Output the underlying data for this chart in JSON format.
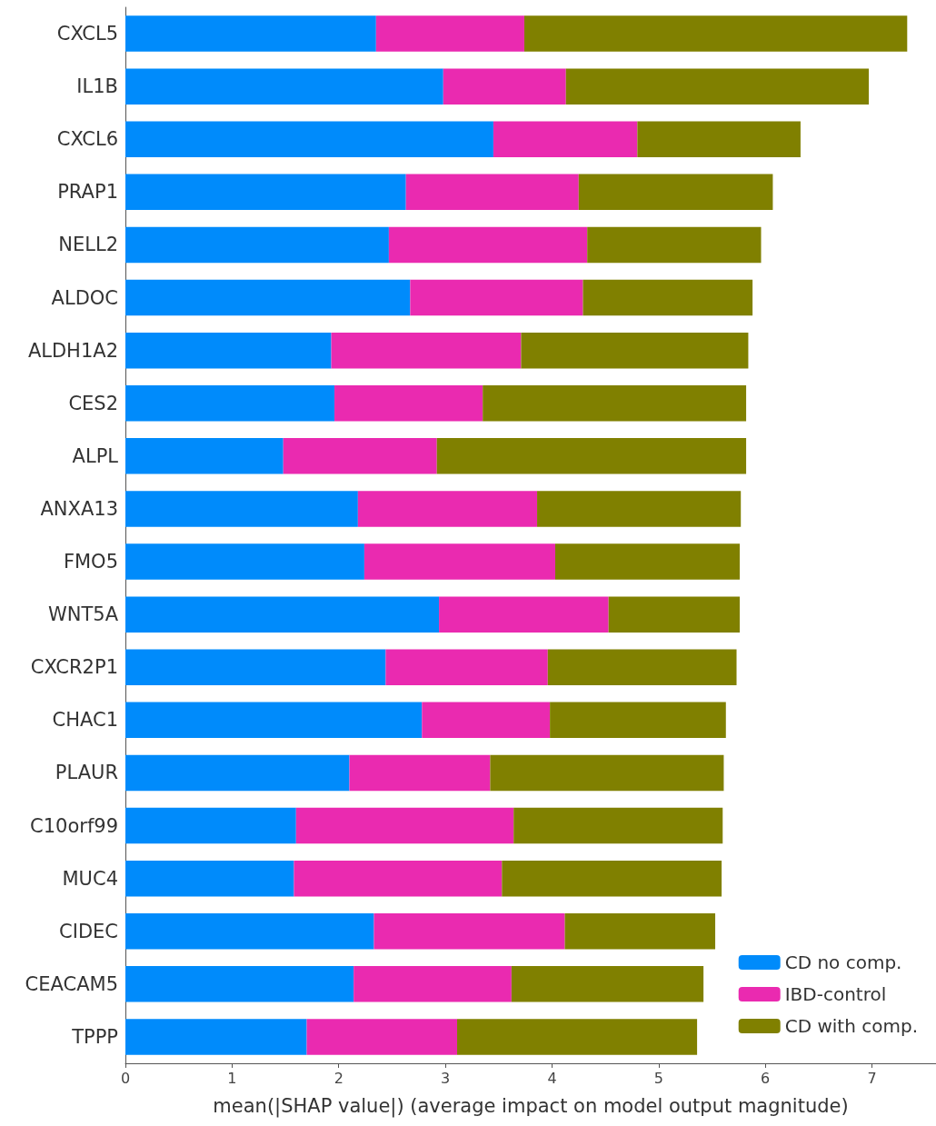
{
  "chart_data": {
    "type": "bar",
    "orientation": "horizontal",
    "stacked": true,
    "xlabel": "mean(|SHAP value|) (average impact on model output magnitude)",
    "categories": [
      "CXCL5",
      "IL1B",
      "CXCL6",
      "PRAP1",
      "NELL2",
      "ALDOC",
      "ALDH1A2",
      "CES2",
      "ALPL",
      "ANXA13",
      "FMO5",
      "WNT5A",
      "CXCR2P1",
      "CHAC1",
      "PLAUR",
      "C10orf99",
      "MUC4",
      "CIDEC",
      "CEACAM5",
      "TPPP"
    ],
    "series": [
      {
        "name": "CD no comp.",
        "color": "#008bfb",
        "values": [
          2.35,
          2.98,
          3.45,
          2.63,
          2.47,
          2.67,
          1.93,
          1.96,
          1.48,
          2.18,
          2.24,
          2.94,
          2.44,
          2.78,
          2.1,
          1.6,
          1.58,
          2.33,
          2.14,
          1.7
        ]
      },
      {
        "name": "IBD-control",
        "color": "#ea2ab0",
        "values": [
          1.39,
          1.15,
          1.35,
          1.62,
          1.86,
          1.62,
          1.78,
          1.39,
          1.44,
          1.68,
          1.79,
          1.59,
          1.52,
          1.2,
          1.32,
          2.04,
          1.95,
          1.79,
          1.48,
          1.41
        ]
      },
      {
        "name": "CD with comp.",
        "color": "#808000",
        "values": [
          3.59,
          2.84,
          1.53,
          1.82,
          1.63,
          1.59,
          2.13,
          2.47,
          2.9,
          1.91,
          1.73,
          1.23,
          1.77,
          1.65,
          2.19,
          1.96,
          2.06,
          1.41,
          1.8,
          2.25
        ]
      }
    ],
    "xlim": [
      0,
      7.6
    ],
    "xticks": [
      0,
      1,
      2,
      3,
      4,
      5,
      6,
      7
    ],
    "grid": false,
    "legend": "bottom right"
  }
}
